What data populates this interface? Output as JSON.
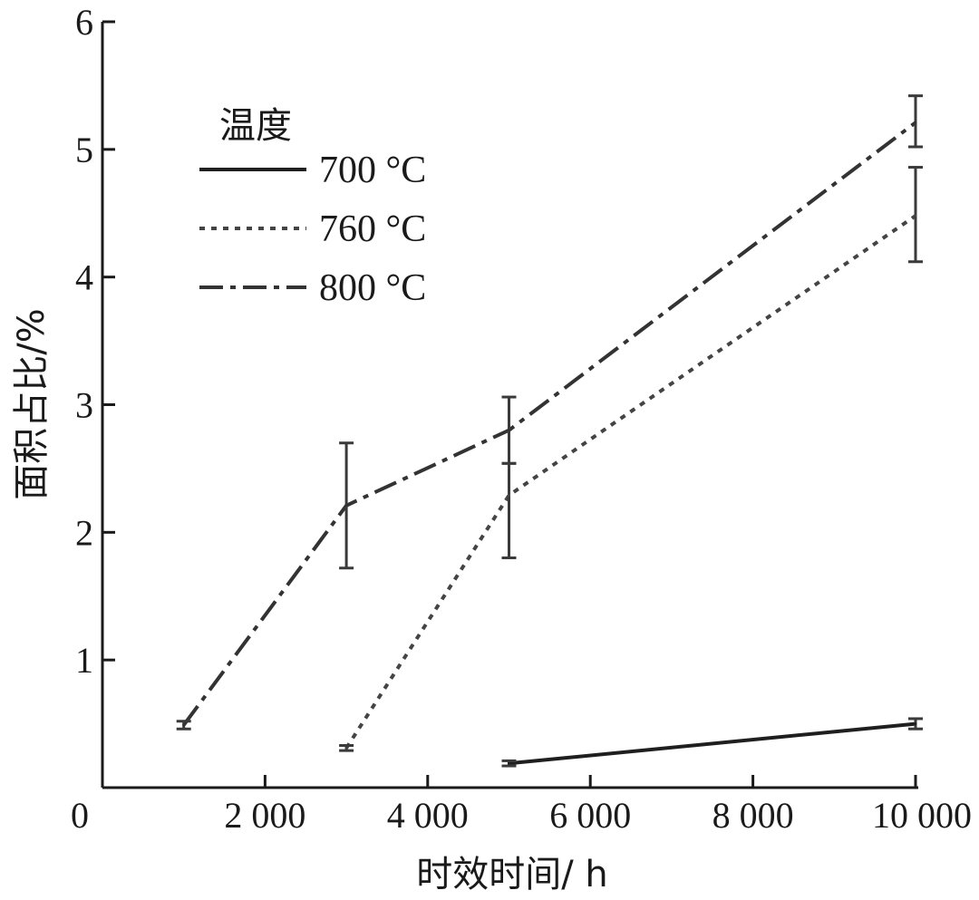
{
  "chart_data": {
    "type": "line",
    "title": "",
    "xlabel": "时效时间/ h",
    "ylabel": "面积占比/%",
    "xlim": [
      0,
      10000
    ],
    "ylim": [
      0,
      6
    ],
    "x_ticks": [
      {
        "value": 0,
        "label": "0"
      },
      {
        "value": 2000,
        "label": "2 000"
      },
      {
        "value": 4000,
        "label": "4 000"
      },
      {
        "value": 6000,
        "label": "6 000"
      },
      {
        "value": 8000,
        "label": "8 000"
      },
      {
        "value": 10000,
        "label": "10 000"
      }
    ],
    "y_ticks": [
      {
        "value": 1,
        "label": "1"
      },
      {
        "value": 2,
        "label": "2"
      },
      {
        "value": 3,
        "label": "3"
      },
      {
        "value": 4,
        "label": "4"
      },
      {
        "value": 5,
        "label": "5"
      },
      {
        "value": 6,
        "label": "6"
      }
    ],
    "legend": {
      "title": "温度",
      "placement": "top-left"
    },
    "series": [
      {
        "name": "700 °C",
        "style": "solid",
        "color": "#1f1f1f",
        "points": [
          {
            "x": 5000,
            "y": 0.19,
            "err_low": 0.17,
            "err_high": 0.21
          },
          {
            "x": 10000,
            "y": 0.5,
            "err_low": 0.46,
            "err_high": 0.54
          }
        ]
      },
      {
        "name": "760 °C",
        "style": "dotted",
        "color": "#444444",
        "points": [
          {
            "x": 3000,
            "y": 0.31,
            "err_low": 0.29,
            "err_high": 0.33
          },
          {
            "x": 5000,
            "y": 2.29,
            "err_low": 1.8,
            "err_high": 2.54
          },
          {
            "x": 10000,
            "y": 4.48,
            "err_low": 4.12,
            "err_high": 4.86
          }
        ]
      },
      {
        "name": "800 °C",
        "style": "dashdot",
        "color": "#333333",
        "points": [
          {
            "x": 1000,
            "y": 0.49,
            "err_low": 0.46,
            "err_high": 0.52
          },
          {
            "x": 3000,
            "y": 2.21,
            "err_low": 1.72,
            "err_high": 2.7
          },
          {
            "x": 5000,
            "y": 2.8,
            "err_low": 2.54,
            "err_high": 3.06
          },
          {
            "x": 10000,
            "y": 5.21,
            "err_low": 5.02,
            "err_high": 5.42
          }
        ]
      }
    ]
  }
}
